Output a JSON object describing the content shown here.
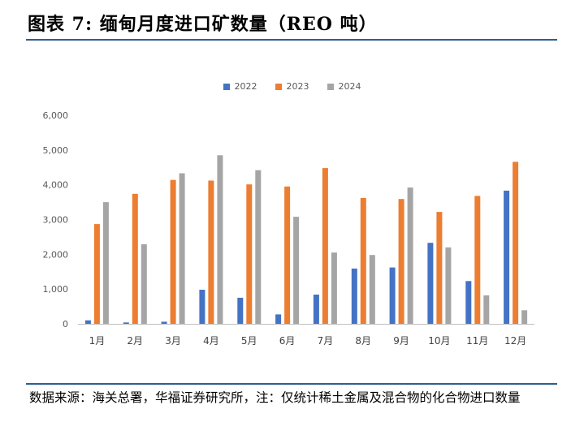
{
  "title": "图表 7:  缅甸月度进口矿数量（REO 吨）",
  "source": "数据来源：海关总署，华福证券研究所，注：仅统计稀土金属及混合物的化合物进口数量",
  "colors": {
    "accent": "#2E5E8E"
  },
  "chart_data": {
    "type": "bar",
    "categories": [
      "1月",
      "2月",
      "3月",
      "4月",
      "5月",
      "6月",
      "7月",
      "8月",
      "9月",
      "10月",
      "11月",
      "12月"
    ],
    "series": [
      {
        "name": "2022",
        "color": "#4472C4",
        "values": [
          100,
          40,
          60,
          980,
          750,
          270,
          840,
          1590,
          1620,
          2330,
          1230,
          3830
        ]
      },
      {
        "name": "2023",
        "color": "#ED7D31",
        "values": [
          2870,
          3740,
          4140,
          4120,
          4010,
          3950,
          4480,
          3620,
          3590,
          3220,
          3680,
          4660
        ]
      },
      {
        "name": "2024",
        "color": "#A5A5A5",
        "values": [
          3500,
          2290,
          4330,
          4850,
          4420,
          3080,
          2050,
          1980,
          3920,
          2200,
          820,
          390
        ]
      }
    ],
    "ylim": [
      0,
      6000
    ],
    "yticks": [
      "0",
      "1,000",
      "2,000",
      "3,000",
      "4,000",
      "5,000",
      "6,000"
    ],
    "grid": false,
    "legend_position": "top"
  }
}
